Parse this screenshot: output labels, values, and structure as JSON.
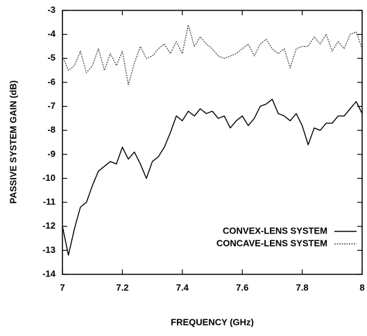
{
  "chart_data": {
    "type": "line",
    "xlabel": "FREQUENCY (GHz)",
    "ylabel": "PASSIVE SYSTEM GAIN (dB)",
    "x": [
      7.0,
      7.02,
      7.04,
      7.06,
      7.08,
      7.1,
      7.12,
      7.14,
      7.16,
      7.18,
      7.2,
      7.22,
      7.24,
      7.26,
      7.28,
      7.3,
      7.32,
      7.34,
      7.36,
      7.38,
      7.4,
      7.42,
      7.44,
      7.46,
      7.48,
      7.5,
      7.52,
      7.54,
      7.56,
      7.58,
      7.6,
      7.62,
      7.64,
      7.66,
      7.68,
      7.7,
      7.72,
      7.74,
      7.76,
      7.78,
      7.8,
      7.82,
      7.84,
      7.86,
      7.88,
      7.9,
      7.92,
      7.94,
      7.96,
      7.98,
      8.0
    ],
    "series": [
      {
        "name": "CONVEX-LENS SYSTEM",
        "color": "#000000",
        "line_style": "solid",
        "values": [
          -12.0,
          -13.2,
          -12.1,
          -11.2,
          -11.0,
          -10.3,
          -9.7,
          -9.5,
          -9.3,
          -9.4,
          -8.7,
          -9.2,
          -8.9,
          -9.4,
          -10.0,
          -9.3,
          -9.1,
          -8.7,
          -8.1,
          -7.4,
          -7.6,
          -7.2,
          -7.4,
          -7.1,
          -7.3,
          -7.2,
          -7.5,
          -7.4,
          -7.9,
          -7.6,
          -7.4,
          -7.8,
          -7.5,
          -7.0,
          -6.9,
          -6.7,
          -7.3,
          -7.4,
          -7.6,
          -7.3,
          -7.8,
          -8.6,
          -7.9,
          -8.0,
          -7.7,
          -7.7,
          -7.4,
          -7.4,
          -7.1,
          -6.8,
          -7.3
        ]
      },
      {
        "name": "CONCAVE-LENS SYSTEM",
        "color": "#555555",
        "line_style": "dotted",
        "values": [
          -4.9,
          -5.5,
          -5.3,
          -4.7,
          -5.6,
          -5.3,
          -4.6,
          -5.5,
          -4.8,
          -5.3,
          -4.7,
          -6.1,
          -5.2,
          -4.5,
          -5.0,
          -4.9,
          -4.6,
          -4.4,
          -4.8,
          -4.3,
          -4.8,
          -3.6,
          -4.5,
          -4.1,
          -4.4,
          -4.6,
          -4.9,
          -5.0,
          -4.9,
          -4.8,
          -4.6,
          -4.4,
          -4.9,
          -4.4,
          -4.2,
          -4.6,
          -4.8,
          -4.6,
          -5.4,
          -4.6,
          -4.5,
          -4.5,
          -4.1,
          -4.4,
          -4.0,
          -4.7,
          -4.3,
          -4.6,
          -4.0,
          -3.9,
          -4.6
        ]
      }
    ],
    "xlim": [
      7,
      8
    ],
    "xticks": [
      7,
      7.2,
      7.4,
      7.6,
      7.8,
      8
    ],
    "ylim": [
      -14,
      -3
    ],
    "yticks": [
      -3,
      -4,
      -5,
      -6,
      -7,
      -8,
      -9,
      -10,
      -11,
      -12,
      -13,
      -14
    ],
    "legend": "lower right",
    "grid": false
  }
}
